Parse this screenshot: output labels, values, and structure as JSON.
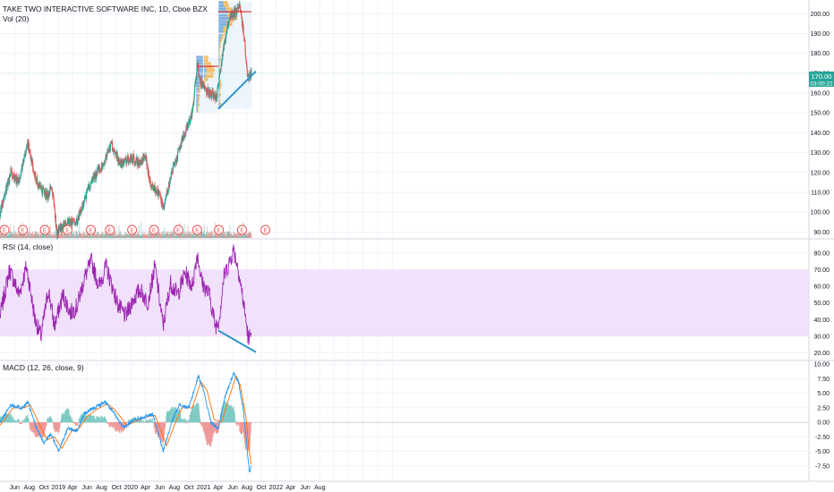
{
  "header": {
    "symbol_title": "TAKE TWO INTERACTIVE SOFTWARE INC, 1D, Cboe BZX",
    "volume_label": "Vol (20)"
  },
  "rsi_panel": {
    "title": "RSI (14, close)"
  },
  "macd_panel": {
    "title": "MACD (12, 26, close, 9)"
  },
  "price_tag": {
    "price": "170.00",
    "countdown": "03:00:22"
  },
  "earnings_marker": "E",
  "colors": {
    "up": "#26a69a",
    "down": "#ef5350",
    "rsi_line": "#9c27b0",
    "rsi_band": "#f1e1fb",
    "macd_line": "#2196f3",
    "signal_line": "#ff6d00",
    "trendline": "#2e96c8",
    "poc_line": "#e53935",
    "volume_profile_box": "#e9f3fb"
  },
  "chart_data": [
    {
      "type": "candlestick",
      "title": "TAKE TWO INTERACTIVE SOFTWARE INC, 1D, Cboe BZX",
      "x_ticks": [
        "Jun",
        "Aug",
        "Oct",
        "2019",
        "Apr",
        "Jun",
        "Aug",
        "Oct",
        "2020",
        "Apr",
        "Jun",
        "Aug",
        "Oct",
        "2021",
        "Apr",
        "Jun",
        "Aug",
        "Oct",
        "2022",
        "Apr",
        "Jun",
        "Aug"
      ],
      "y_ticks": [
        90,
        100,
        110,
        120,
        130,
        140,
        150,
        160,
        170,
        180,
        190,
        200
      ],
      "ylim": [
        87,
        206
      ],
      "last_price": 170.0,
      "close_path": [
        [
          "2018-05-01",
          100
        ],
        [
          "2018-06-15",
          120
        ],
        [
          "2018-07-15",
          115
        ],
        [
          "2018-08-25",
          135
        ],
        [
          "2018-09-20",
          120
        ],
        [
          "2018-10-15",
          112
        ],
        [
          "2018-11-15",
          108
        ],
        [
          "2018-12-05",
          113
        ],
        [
          "2018-12-25",
          90
        ],
        [
          "2019-02-10",
          95
        ],
        [
          "2019-03-20",
          95
        ],
        [
          "2019-04-15",
          105
        ],
        [
          "2019-05-20",
          115
        ],
        [
          "2019-07-10",
          125
        ],
        [
          "2019-08-10",
          134
        ],
        [
          "2019-09-20",
          124
        ],
        [
          "2019-10-30",
          128
        ],
        [
          "2019-12-10",
          124
        ],
        [
          "2019-12-31",
          130
        ],
        [
          "2020-01-20",
          115
        ],
        [
          "2020-03-01",
          108
        ],
        [
          "2020-03-18",
          102
        ],
        [
          "2020-04-20",
          120
        ],
        [
          "2020-05-30",
          135
        ],
        [
          "2020-07-15",
          150
        ],
        [
          "2020-08-05",
          175
        ],
        [
          "2020-08-20",
          165
        ],
        [
          "2020-09-20",
          160
        ],
        [
          "2020-10-25",
          158
        ],
        [
          "2020-11-20",
          180
        ],
        [
          "2020-12-20",
          200
        ],
        [
          "2021-01-10",
          200
        ],
        [
          "2021-01-31",
          203
        ],
        [
          "2021-02-10",
          195
        ],
        [
          "2021-02-20",
          185
        ],
        [
          "2021-03-05",
          167
        ],
        [
          "2021-03-20",
          170
        ]
      ],
      "trendline": [
        [
          "2020-11-01",
          152
        ],
        [
          "2021-04-08",
          171
        ]
      ],
      "poc_lines": [
        {
          "from": "2020-08-05",
          "to": "2020-11-01",
          "price": 173.5
        },
        {
          "from": "2020-11-01",
          "to": "2021-03-20",
          "price": 201
        }
      ],
      "earnings_dates": [
        "2018-05-20",
        "2018-08-05",
        "2018-11-05",
        "2019-02-08",
        "2019-05-17",
        "2019-08-05",
        "2019-11-06",
        "2020-02-06",
        "2020-05-18",
        "2020-08-05",
        "2020-11-04",
        "2021-02-09",
        "2021-05-18"
      ],
      "volume_note": "Vol (20) histogram along bottom of price pane"
    },
    {
      "type": "line",
      "title": "RSI (14, close)",
      "y_ticks": [
        20,
        30,
        40,
        50,
        60,
        70,
        80
      ],
      "ylim": [
        16,
        88
      ],
      "band": [
        30,
        70
      ],
      "series": [
        {
          "name": "RSI",
          "path": [
            [
              "2018-05-01",
              42
            ],
            [
              "2018-06-10",
              70
            ],
            [
              "2018-07-20",
              55
            ],
            [
              "2018-08-20",
              72
            ],
            [
              "2018-09-25",
              40
            ],
            [
              "2018-10-20",
              30
            ],
            [
              "2018-11-20",
              58
            ],
            [
              "2018-12-15",
              36
            ],
            [
              "2019-01-20",
              55
            ],
            [
              "2019-02-20",
              44
            ],
            [
              "2019-03-20",
              48
            ],
            [
              "2019-04-20",
              65
            ],
            [
              "2019-05-20",
              75
            ],
            [
              "2019-06-20",
              60
            ],
            [
              "2019-07-20",
              72
            ],
            [
              "2019-08-10",
              62
            ],
            [
              "2019-09-10",
              48
            ],
            [
              "2019-10-10",
              42
            ],
            [
              "2019-11-10",
              52
            ],
            [
              "2019-12-10",
              58
            ],
            [
              "2020-01-10",
              50
            ],
            [
              "2020-02-10",
              72
            ],
            [
              "2020-03-15",
              36
            ],
            [
              "2020-04-15",
              62
            ],
            [
              "2020-05-15",
              55
            ],
            [
              "2020-06-15",
              68
            ],
            [
              "2020-07-15",
              60
            ],
            [
              "2020-08-05",
              80
            ],
            [
              "2020-08-25",
              62
            ],
            [
              "2020-09-25",
              55
            ],
            [
              "2020-10-20",
              36
            ],
            [
              "2020-11-05",
              40
            ],
            [
              "2020-11-25",
              66
            ],
            [
              "2020-12-20",
              75
            ],
            [
              "2021-01-05",
              82
            ],
            [
              "2021-01-25",
              70
            ],
            [
              "2021-02-10",
              55
            ],
            [
              "2021-02-25",
              40
            ],
            [
              "2021-03-10",
              26
            ],
            [
              "2021-03-20",
              38
            ]
          ]
        }
      ],
      "trendline": [
        [
          "2020-11-01",
          33.5
        ],
        [
          "2021-04-08",
          20.5
        ]
      ]
    },
    {
      "type": "line",
      "title": "MACD (12, 26, close, 9)",
      "y_ticks": [
        -7.5,
        -5,
        -2.5,
        0,
        2.5,
        5,
        7.5,
        10
      ],
      "y_tick_labels": [
        "-7.50",
        "-5.00",
        "-2.50",
        "0.00",
        "2.50",
        "5.00",
        "7.50",
        "10.00"
      ],
      "ylim": [
        -10,
        10.5
      ],
      "series": [
        {
          "name": "MACD",
          "path": [
            [
              "2018-05-01",
              0
            ],
            [
              "2018-06-15",
              3
            ],
            [
              "2018-08-01",
              2.5
            ],
            [
              "2018-08-25",
              3.5
            ],
            [
              "2018-10-01",
              -1
            ],
            [
              "2018-11-01",
              -3.5
            ],
            [
              "2018-12-01",
              -2
            ],
            [
              "2019-01-01",
              -5
            ],
            [
              "2019-02-10",
              -1
            ],
            [
              "2019-03-20",
              -1.5
            ],
            [
              "2019-04-20",
              1.5
            ],
            [
              "2019-06-01",
              2.5
            ],
            [
              "2019-07-15",
              3.5
            ],
            [
              "2019-08-15",
              2
            ],
            [
              "2019-10-01",
              -1
            ],
            [
              "2019-11-15",
              0.5
            ],
            [
              "2019-12-31",
              1
            ],
            [
              "2020-02-01",
              1.5
            ],
            [
              "2020-03-15",
              -5
            ],
            [
              "2020-04-20",
              0
            ],
            [
              "2020-05-20",
              3
            ],
            [
              "2020-07-01",
              2.5
            ],
            [
              "2020-08-10",
              8
            ],
            [
              "2020-09-01",
              5.5
            ],
            [
              "2020-10-01",
              0
            ],
            [
              "2020-11-01",
              -1
            ],
            [
              "2020-12-01",
              4.5
            ],
            [
              "2021-01-05",
              8.5
            ],
            [
              "2021-01-25",
              7
            ],
            [
              "2021-02-15",
              2
            ],
            [
              "2021-03-01",
              -4
            ],
            [
              "2021-03-12",
              -8.5
            ],
            [
              "2021-03-20",
              -7.5
            ]
          ]
        },
        {
          "name": "Signal",
          "path": [
            [
              "2018-05-01",
              -0.5
            ],
            [
              "2018-06-25",
              2.5
            ],
            [
              "2018-08-10",
              2.5
            ],
            [
              "2018-09-05",
              3
            ],
            [
              "2018-10-15",
              -0.5
            ],
            [
              "2018-11-15",
              -3
            ],
            [
              "2018-12-15",
              -2.5
            ],
            [
              "2019-01-15",
              -4.5
            ],
            [
              "2019-02-25",
              -1.5
            ],
            [
              "2019-03-30",
              -1
            ],
            [
              "2019-05-01",
              1
            ],
            [
              "2019-06-10",
              2.2
            ],
            [
              "2019-07-25",
              3.2
            ],
            [
              "2019-08-25",
              2.2
            ],
            [
              "2019-10-15",
              -0.5
            ],
            [
              "2019-11-30",
              0.3
            ],
            [
              "2020-01-10",
              1
            ],
            [
              "2020-02-10",
              1.2
            ],
            [
              "2020-03-30",
              -4
            ],
            [
              "2020-05-01",
              -0.5
            ],
            [
              "2020-06-01",
              2.5
            ],
            [
              "2020-07-15",
              2.5
            ],
            [
              "2020-08-20",
              7
            ],
            [
              "2020-09-15",
              5.5
            ],
            [
              "2020-10-15",
              0.5
            ],
            [
              "2020-11-15",
              0
            ],
            [
              "2020-12-15",
              4
            ],
            [
              "2021-01-15",
              8
            ],
            [
              "2021-02-01",
              6.5
            ],
            [
              "2021-02-25",
              1
            ],
            [
              "2021-03-10",
              -4.5
            ],
            [
              "2021-03-20",
              -7.5
            ]
          ]
        }
      ]
    }
  ]
}
